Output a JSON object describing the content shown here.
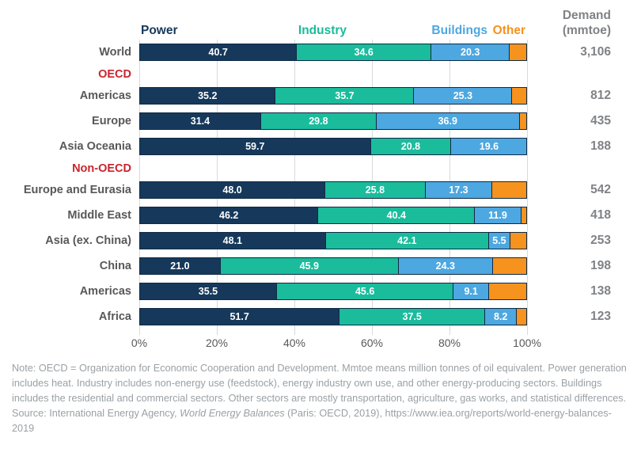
{
  "header": {
    "power": "Power",
    "industry": "Industry",
    "buildings": "Buildings",
    "other": "Other",
    "demand_line1": "Demand",
    "demand_line2": "(mmtoe)"
  },
  "chart_data": {
    "type": "bar",
    "orientation": "horizontal",
    "stacked": true,
    "xlim": [
      0,
      100
    ],
    "x_ticks": [
      "0%",
      "20%",
      "40%",
      "60%",
      "80%",
      "100%"
    ],
    "grid": true,
    "legend_position": "top (colored column headers)",
    "demand_column_header": "Demand (mmtoe)",
    "series": [
      {
        "key": "power",
        "name": "Power",
        "color": "#16395b"
      },
      {
        "key": "industry",
        "name": "Industry",
        "color": "#1abc9c"
      },
      {
        "key": "buildings",
        "name": "Buildings",
        "color": "#4da7e0"
      },
      {
        "key": "other",
        "name": "Other",
        "color": "#f6921e"
      }
    ],
    "rows": [
      {
        "type": "bar",
        "label": "World",
        "values": [
          40.7,
          34.6,
          20.3,
          4.4
        ],
        "value_labels": [
          "40.7",
          "34.6",
          "20.3",
          ""
        ],
        "demand": "3,106"
      },
      {
        "type": "group",
        "label": "OECD"
      },
      {
        "type": "bar",
        "label": "Americas",
        "values": [
          35.2,
          35.7,
          25.3,
          3.8
        ],
        "value_labels": [
          "35.2",
          "35.7",
          "25.3",
          ""
        ],
        "demand": "812"
      },
      {
        "type": "bar",
        "label": "Europe",
        "values": [
          31.4,
          29.8,
          36.9,
          1.9
        ],
        "value_labels": [
          "31.4",
          "29.8",
          "36.9",
          ""
        ],
        "demand": "435"
      },
      {
        "type": "bar",
        "label": "Asia Oceania",
        "values": [
          59.7,
          20.8,
          19.6,
          0
        ],
        "value_labels": [
          "59.7",
          "20.8",
          "19.6",
          ""
        ],
        "demand": "188"
      },
      {
        "type": "group",
        "label": "Non-OECD"
      },
      {
        "type": "bar",
        "label": "Europe and Eurasia",
        "values": [
          48.0,
          25.8,
          17.3,
          8.9
        ],
        "value_labels": [
          "48.0",
          "25.8",
          "17.3",
          ""
        ],
        "demand": "542"
      },
      {
        "type": "bar",
        "label": "Middle East",
        "values": [
          46.2,
          40.4,
          11.9,
          1.5
        ],
        "value_labels": [
          "46.2",
          "40.4",
          "11.9",
          ""
        ],
        "demand": "418"
      },
      {
        "type": "bar",
        "label": "Asia (ex. China)",
        "values": [
          48.1,
          42.1,
          5.5,
          4.3
        ],
        "value_labels": [
          "48.1",
          "42.1",
          "5.5",
          ""
        ],
        "demand": "253"
      },
      {
        "type": "bar",
        "label": "China",
        "values": [
          21.0,
          45.9,
          24.3,
          8.8
        ],
        "value_labels": [
          "21.0",
          "45.9",
          "24.3",
          ""
        ],
        "demand": "198"
      },
      {
        "type": "bar",
        "label": "Americas",
        "values": [
          35.5,
          45.6,
          9.1,
          9.8
        ],
        "value_labels": [
          "35.5",
          "45.6",
          "9.1",
          ""
        ],
        "demand": "138"
      },
      {
        "type": "bar",
        "label": "Africa",
        "values": [
          51.7,
          37.5,
          8.2,
          2.6
        ],
        "value_labels": [
          "51.7",
          "37.5",
          "8.2",
          ""
        ],
        "demand": "123"
      }
    ]
  },
  "note": {
    "note_text": "Note: OECD = Organization for Economic Cooperation and Development. Mmtoe means million tonnes of oil equivalent. Power generation includes heat. Industry includes non-energy use (feedstock), energy industry own use, and other energy-producing sectors. Buildings includes the residential and commercial sectors. Other sectors are mostly transportation, agriculture, gas works, and statistical differences.",
    "source_prefix": "Source: International Energy Agency, ",
    "source_italic": "World Energy Balances",
    "source_suffix": " (Paris: OECD, 2019), https://www.iea.org/reports/world-energy-balances-2019"
  },
  "colors": {
    "background": "#ffffff",
    "group_label": "#c9242e",
    "row_label": "#58585b",
    "demand_value": "#808285",
    "axis_label": "#58585b",
    "note_text": "#9ba0a4",
    "gridline": "#d9d9d9",
    "segment_border": "#0e2a44"
  }
}
